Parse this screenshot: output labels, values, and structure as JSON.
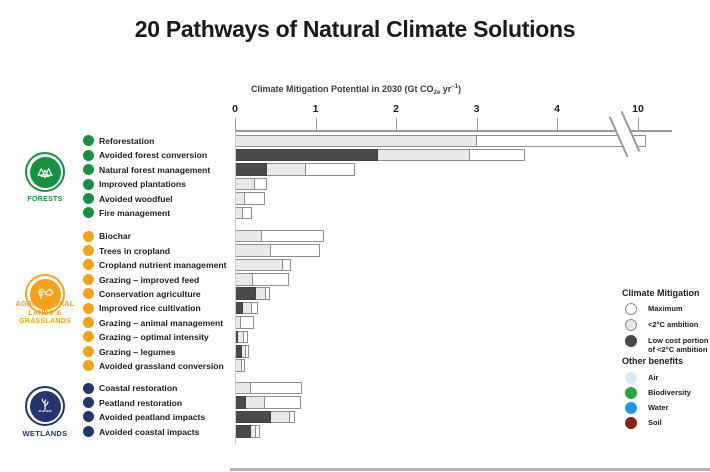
{
  "title": "20 Pathways of Natural Climate Solutions",
  "axis": {
    "label_prefix": "Climate Mitigation Potential in 2030 (Gt CO",
    "label_sub": "2e",
    "label_mid": " yr",
    "label_sup": "−1",
    "label_suffix": ")"
  },
  "legend": {
    "mitigation_title": "Climate Mitigation",
    "mitigation_items": [
      {
        "label": "Maximum",
        "color": "#ffffff",
        "border": "#8f8f8f"
      },
      {
        "label": "<2°C ambition",
        "color": "#e9e9e9",
        "border": "#8f8f8f"
      },
      {
        "label": "Low cost portion of <2°C ambition",
        "color": "#4a4a4a",
        "border": "#424242"
      }
    ],
    "benefits_title": "Other benefits",
    "benefits_items": [
      {
        "label": "Air",
        "color": "#d7eaf7"
      },
      {
        "label": "Biodiversity",
        "color": "#2aa63c"
      },
      {
        "label": "Water",
        "color": "#2196e3"
      },
      {
        "label": "Soil",
        "color": "#8c2209"
      }
    ]
  },
  "chart_data": {
    "type": "bar",
    "title": "20 Pathways of Natural Climate Solutions",
    "xlabel": "Climate Mitigation Potential in 2030 (Gt CO2e yr-1)",
    "xticks": [
      0,
      1,
      2,
      3,
      4,
      10
    ],
    "axis_break_between": [
      4,
      10
    ],
    "series_legend": [
      "Maximum",
      "<2°C ambition",
      "Low cost portion of <2°C ambition"
    ],
    "unit": "Gt CO2e yr-1",
    "groups": [
      {
        "name": "FORESTS",
        "name_lines": [
          "FORESTS"
        ],
        "color": "#15913f",
        "items": [
          {
            "label": "Reforestation",
            "low_cost": 0,
            "ambition_2c": 3.0,
            "maximum": 10.1,
            "crosses_break": true
          },
          {
            "label": "Avoided forest conversion",
            "low_cost": 1.78,
            "ambition_2c": 2.92,
            "maximum": 3.6
          },
          {
            "label": "Natural forest management",
            "low_cost": 0.4,
            "ambition_2c": 0.88,
            "maximum": 1.49
          },
          {
            "label": "Improved plantations",
            "low_cost": 0,
            "ambition_2c": 0.25,
            "maximum": 0.4
          },
          {
            "label": "Avoided woodfuel",
            "low_cost": 0,
            "ambition_2c": 0.12,
            "maximum": 0.37
          },
          {
            "label": "Fire management",
            "low_cost": 0,
            "ambition_2c": 0.1,
            "maximum": 0.21
          }
        ]
      },
      {
        "name": "AGRICULTURAL LANDS & GRASSLANDS",
        "name_lines": [
          "AGRICULTURAL",
          "LANDS &",
          "GRASSLANDS"
        ],
        "color": "#f5a21b",
        "items": [
          {
            "label": "Biochar",
            "low_cost": 0,
            "ambition_2c": 0.33,
            "maximum": 1.1
          },
          {
            "label": "Trees in cropland",
            "low_cost": 0,
            "ambition_2c": 0.45,
            "maximum": 1.06
          },
          {
            "label": "Cropland nutrient management",
            "low_cost": 0,
            "ambition_2c": 0.6,
            "maximum": 0.69
          },
          {
            "label": "Grazing – improved feed",
            "low_cost": 0,
            "ambition_2c": 0.22,
            "maximum": 0.67
          },
          {
            "label": "Conservation agriculture",
            "low_cost": 0.26,
            "ambition_2c": 0.38,
            "maximum": 0.43
          },
          {
            "label": "Improved rice cultivation",
            "low_cost": 0.1,
            "ambition_2c": 0.21,
            "maximum": 0.29
          },
          {
            "label": "Grazing – animal management",
            "low_cost": 0,
            "ambition_2c": 0.08,
            "maximum": 0.24
          },
          {
            "label": "Grazing – optimal intensity",
            "low_cost": 0.04,
            "ambition_2c": 0.11,
            "maximum": 0.16
          },
          {
            "label": "Grazing – legumes",
            "low_cost": 0.09,
            "ambition_2c": 0.14,
            "maximum": 0.17
          },
          {
            "label": "Avoided grassland conversion",
            "low_cost": 0,
            "ambition_2c": 0.09,
            "maximum": 0.13
          }
        ]
      },
      {
        "name": "WETLANDS",
        "name_lines": [
          "WETLANDS"
        ],
        "color": "#23356e",
        "items": [
          {
            "label": "Coastal restoration",
            "low_cost": 0,
            "ambition_2c": 0.2,
            "maximum": 0.83
          },
          {
            "label": "Peatland restoration",
            "low_cost": 0.14,
            "ambition_2c": 0.37,
            "maximum": 0.82
          },
          {
            "label": "Avoided peatland impacts",
            "low_cost": 0.45,
            "ambition_2c": 0.68,
            "maximum": 0.74
          },
          {
            "label": "Avoided coastal impacts",
            "low_cost": 0.2,
            "ambition_2c": 0.26,
            "maximum": 0.31
          }
        ]
      }
    ]
  }
}
